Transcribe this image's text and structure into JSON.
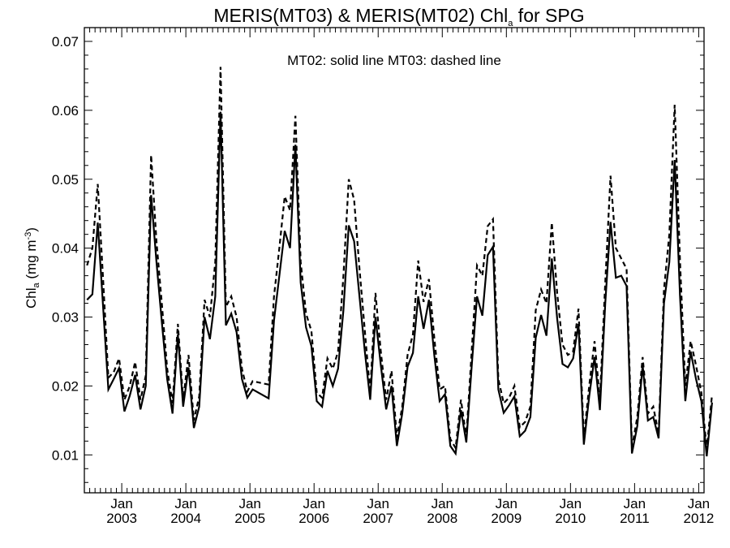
{
  "chart_data": {
    "type": "line",
    "title": {
      "main": "MERIS(MT03) & MERIS(MT02)  Chl",
      "sub": "a",
      "rest": " for SPG"
    },
    "annotation": "MT02: solid line   MT03: dashed line",
    "ylabel": {
      "main": "Chl",
      "sub": "a",
      "mid": " (mg m",
      "sup": "-3",
      "end": ")"
    },
    "ylim": [
      0.0045,
      0.072
    ],
    "yticks": [
      {
        "value": 0.01,
        "label": "0.01"
      },
      {
        "value": 0.02,
        "label": "0.02"
      },
      {
        "value": 0.03,
        "label": "0.03"
      },
      {
        "value": 0.04,
        "label": "0.04"
      },
      {
        "value": 0.05,
        "label": "0.05"
      },
      {
        "value": 0.06,
        "label": "0.06"
      },
      {
        "value": 0.07,
        "label": "0.07"
      }
    ],
    "xlim": [
      "2002-06-01",
      "2012-02-01"
    ],
    "xticks": [
      {
        "date": "2003-01-01",
        "month": "Jan",
        "year": "2003"
      },
      {
        "date": "2004-01-01",
        "month": "Jan",
        "year": "2004"
      },
      {
        "date": "2005-01-01",
        "month": "Jan",
        "year": "2005"
      },
      {
        "date": "2006-01-01",
        "month": "Jan",
        "year": "2006"
      },
      {
        "date": "2007-01-01",
        "month": "Jan",
        "year": "2007"
      },
      {
        "date": "2008-01-01",
        "month": "Jan",
        "year": "2008"
      },
      {
        "date": "2009-01-01",
        "month": "Jan",
        "year": "2009"
      },
      {
        "date": "2010-01-01",
        "month": "Jan",
        "year": "2010"
      },
      {
        "date": "2011-01-01",
        "month": "Jan",
        "year": "2011"
      },
      {
        "date": "2012-01-01",
        "month": "Jan",
        "year": "2012"
      }
    ],
    "series": [
      {
        "name": "MT02",
        "style": "solid",
        "color": "#000000",
        "points": [
          [
            "2002-06",
            0.0325
          ],
          [
            "2002-07",
            0.0333
          ],
          [
            "2002-08",
            0.0437
          ],
          [
            "2002-09",
            0.0315
          ],
          [
            "2002-10",
            0.0195
          ],
          [
            "2002-11",
            0.021
          ],
          [
            "2002-12",
            0.0226
          ],
          [
            "2003-01",
            0.0163
          ],
          [
            "2003-02",
            0.0186
          ],
          [
            "2003-03",
            0.0216
          ],
          [
            "2003-04",
            0.0166
          ],
          [
            "2003-05",
            0.02
          ],
          [
            "2003-06",
            0.0477
          ],
          [
            "2003-07",
            0.038
          ],
          [
            "2003-08",
            0.0293
          ],
          [
            "2003-09",
            0.021
          ],
          [
            "2003-10",
            0.016
          ],
          [
            "2003-11",
            0.0275
          ],
          [
            "2003-12",
            0.017
          ],
          [
            "2004-01",
            0.0227
          ],
          [
            "2004-02",
            0.0139
          ],
          [
            "2004-03",
            0.017
          ],
          [
            "2004-04",
            0.03
          ],
          [
            "2004-05",
            0.0268
          ],
          [
            "2004-06",
            0.033
          ],
          [
            "2004-07",
            0.0598
          ],
          [
            "2004-08",
            0.0288
          ],
          [
            "2004-09",
            0.0305
          ],
          [
            "2004-10",
            0.0278
          ],
          [
            "2004-11",
            0.021
          ],
          [
            "2004-12",
            0.0183
          ],
          [
            "2005-01",
            0.0195
          ],
          [
            "2005-04",
            0.0182
          ],
          [
            "2005-05",
            0.0295
          ],
          [
            "2005-06",
            0.036
          ],
          [
            "2005-07",
            0.0425
          ],
          [
            "2005-08",
            0.04
          ],
          [
            "2005-09",
            0.055
          ],
          [
            "2005-10",
            0.035
          ],
          [
            "2005-11",
            0.0285
          ],
          [
            "2005-12",
            0.0258
          ],
          [
            "2006-01",
            0.0178
          ],
          [
            "2006-02",
            0.017
          ],
          [
            "2006-03",
            0.0222
          ],
          [
            "2006-04",
            0.02
          ],
          [
            "2006-05",
            0.0225
          ],
          [
            "2006-06",
            0.031
          ],
          [
            "2006-07",
            0.0433
          ],
          [
            "2006-08",
            0.041
          ],
          [
            "2006-09",
            0.033
          ],
          [
            "2006-10",
            0.025
          ],
          [
            "2006-11",
            0.018
          ],
          [
            "2006-12",
            0.03
          ],
          [
            "2007-01",
            0.023
          ],
          [
            "2007-02",
            0.0166
          ],
          [
            "2007-03",
            0.02
          ],
          [
            "2007-04",
            0.0113
          ],
          [
            "2007-05",
            0.016
          ],
          [
            "2007-06",
            0.0228
          ],
          [
            "2007-07",
            0.0248
          ],
          [
            "2007-08",
            0.033
          ],
          [
            "2007-09",
            0.0283
          ],
          [
            "2007-10",
            0.0325
          ],
          [
            "2007-11",
            0.0245
          ],
          [
            "2007-12",
            0.0178
          ],
          [
            "2008-01",
            0.0188
          ],
          [
            "2008-02",
            0.0113
          ],
          [
            "2008-03",
            0.0102
          ],
          [
            "2008-04",
            0.0165
          ],
          [
            "2008-05",
            0.0118
          ],
          [
            "2008-06",
            0.0228
          ],
          [
            "2008-07",
            0.033
          ],
          [
            "2008-08",
            0.0302
          ],
          [
            "2008-09",
            0.039
          ],
          [
            "2008-10",
            0.0402
          ],
          [
            "2008-11",
            0.0195
          ],
          [
            "2008-12",
            0.0161
          ],
          [
            "2009-01",
            0.0172
          ],
          [
            "2009-02",
            0.0185
          ],
          [
            "2009-03",
            0.0127
          ],
          [
            "2009-04",
            0.0135
          ],
          [
            "2009-05",
            0.0155
          ],
          [
            "2009-06",
            0.027
          ],
          [
            "2009-07",
            0.0303
          ],
          [
            "2009-08",
            0.0273
          ],
          [
            "2009-09",
            0.0385
          ],
          [
            "2009-10",
            0.0298
          ],
          [
            "2009-11",
            0.0232
          ],
          [
            "2009-12",
            0.0227
          ],
          [
            "2010-01",
            0.024
          ],
          [
            "2010-02",
            0.029
          ],
          [
            "2010-03",
            0.0115
          ],
          [
            "2010-04",
            0.0185
          ],
          [
            "2010-05",
            0.0242
          ],
          [
            "2010-06",
            0.0165
          ],
          [
            "2010-07",
            0.032
          ],
          [
            "2010-08",
            0.0438
          ],
          [
            "2010-09",
            0.0357
          ],
          [
            "2010-10",
            0.036
          ],
          [
            "2010-11",
            0.0345
          ],
          [
            "2010-12",
            0.0102
          ],
          [
            "2011-01",
            0.0142
          ],
          [
            "2011-02",
            0.023
          ],
          [
            "2011-03",
            0.015
          ],
          [
            "2011-04",
            0.0155
          ],
          [
            "2011-05",
            0.0124
          ],
          [
            "2011-06",
            0.032
          ],
          [
            "2011-07",
            0.038
          ],
          [
            "2011-08",
            0.0528
          ],
          [
            "2011-09",
            0.033
          ],
          [
            "2011-10",
            0.0178
          ],
          [
            "2011-11",
            0.025
          ],
          [
            "2011-12",
            0.021
          ],
          [
            "2012-01",
            0.0178
          ],
          [
            "2012-02",
            0.0098
          ],
          [
            "2012-03",
            0.0176
          ]
        ]
      },
      {
        "name": "MT03",
        "style": "dashed",
        "color": "#000000",
        "points": [
          [
            "2002-06",
            0.0375
          ],
          [
            "2002-07",
            0.04
          ],
          [
            "2002-08",
            0.0493
          ],
          [
            "2002-09",
            0.0355
          ],
          [
            "2002-10",
            0.0212
          ],
          [
            "2002-11",
            0.022
          ],
          [
            "2002-12",
            0.024
          ],
          [
            "2003-01",
            0.018
          ],
          [
            "2003-02",
            0.02
          ],
          [
            "2003-03",
            0.0235
          ],
          [
            "2003-04",
            0.018
          ],
          [
            "2003-05",
            0.0215
          ],
          [
            "2003-06",
            0.0535
          ],
          [
            "2003-07",
            0.041
          ],
          [
            "2003-08",
            0.032
          ],
          [
            "2003-09",
            0.0225
          ],
          [
            "2003-10",
            0.0175
          ],
          [
            "2003-11",
            0.029
          ],
          [
            "2003-12",
            0.018
          ],
          [
            "2004-01",
            0.0245
          ],
          [
            "2004-02",
            0.015
          ],
          [
            "2004-03",
            0.0185
          ],
          [
            "2004-04",
            0.0325
          ],
          [
            "2004-05",
            0.03
          ],
          [
            "2004-06",
            0.038
          ],
          [
            "2004-07",
            0.0663
          ],
          [
            "2004-08",
            0.0315
          ],
          [
            "2004-09",
            0.033
          ],
          [
            "2004-10",
            0.03
          ],
          [
            "2004-11",
            0.0225
          ],
          [
            "2004-12",
            0.0192
          ],
          [
            "2005-01",
            0.0207
          ],
          [
            "2005-04",
            0.0202
          ],
          [
            "2005-05",
            0.033
          ],
          [
            "2005-06",
            0.04
          ],
          [
            "2005-07",
            0.0475
          ],
          [
            "2005-08",
            0.0455
          ],
          [
            "2005-09",
            0.0592
          ],
          [
            "2005-10",
            0.038
          ],
          [
            "2005-11",
            0.0305
          ],
          [
            "2005-12",
            0.028
          ],
          [
            "2006-01",
            0.019
          ],
          [
            "2006-02",
            0.0183
          ],
          [
            "2006-03",
            0.024
          ],
          [
            "2006-04",
            0.0225
          ],
          [
            "2006-05",
            0.025
          ],
          [
            "2006-06",
            0.036
          ],
          [
            "2006-07",
            0.05
          ],
          [
            "2006-08",
            0.047
          ],
          [
            "2006-09",
            0.037
          ],
          [
            "2006-10",
            0.028
          ],
          [
            "2006-11",
            0.019
          ],
          [
            "2006-12",
            0.0335
          ],
          [
            "2007-01",
            0.025
          ],
          [
            "2007-02",
            0.018
          ],
          [
            "2007-03",
            0.0222
          ],
          [
            "2007-04",
            0.0125
          ],
          [
            "2007-05",
            0.017
          ],
          [
            "2007-06",
            0.0245
          ],
          [
            "2007-07",
            0.0275
          ],
          [
            "2007-08",
            0.0382
          ],
          [
            "2007-09",
            0.0322
          ],
          [
            "2007-10",
            0.0355
          ],
          [
            "2007-11",
            0.027
          ],
          [
            "2007-12",
            0.0195
          ],
          [
            "2008-01",
            0.02
          ],
          [
            "2008-02",
            0.0123
          ],
          [
            "2008-03",
            0.011
          ],
          [
            "2008-04",
            0.018
          ],
          [
            "2008-05",
            0.0125
          ],
          [
            "2008-06",
            0.025
          ],
          [
            "2008-07",
            0.0375
          ],
          [
            "2008-08",
            0.036
          ],
          [
            "2008-09",
            0.0432
          ],
          [
            "2008-10",
            0.0442
          ],
          [
            "2008-11",
            0.021
          ],
          [
            "2008-12",
            0.0175
          ],
          [
            "2009-01",
            0.0183
          ],
          [
            "2009-02",
            0.02
          ],
          [
            "2009-03",
            0.014
          ],
          [
            "2009-04",
            0.0148
          ],
          [
            "2009-05",
            0.017
          ],
          [
            "2009-06",
            0.031
          ],
          [
            "2009-07",
            0.034
          ],
          [
            "2009-08",
            0.032
          ],
          [
            "2009-09",
            0.0437
          ],
          [
            "2009-10",
            0.0335
          ],
          [
            "2009-11",
            0.026
          ],
          [
            "2009-12",
            0.0245
          ],
          [
            "2010-01",
            0.025
          ],
          [
            "2010-02",
            0.0312
          ],
          [
            "2010-03",
            0.0125
          ],
          [
            "2010-04",
            0.02
          ],
          [
            "2010-05",
            0.0265
          ],
          [
            "2010-06",
            0.018
          ],
          [
            "2010-07",
            0.035
          ],
          [
            "2010-08",
            0.0505
          ],
          [
            "2010-09",
            0.04
          ],
          [
            "2010-10",
            0.0385
          ],
          [
            "2010-11",
            0.037
          ],
          [
            "2010-12",
            0.011
          ],
          [
            "2011-01",
            0.0155
          ],
          [
            "2011-02",
            0.0242
          ],
          [
            "2011-03",
            0.016
          ],
          [
            "2011-04",
            0.017
          ],
          [
            "2011-05",
            0.013
          ],
          [
            "2011-06",
            0.034
          ],
          [
            "2011-07",
            0.042
          ],
          [
            "2011-08",
            0.0608
          ],
          [
            "2011-09",
            0.038
          ],
          [
            "2011-10",
            0.02
          ],
          [
            "2011-11",
            0.0265
          ],
          [
            "2011-12",
            0.023
          ],
          [
            "2012-01",
            0.019
          ],
          [
            "2012-02",
            0.0108
          ],
          [
            "2012-03",
            0.0188
          ]
        ]
      }
    ],
    "grid": false,
    "legend": "none"
  }
}
